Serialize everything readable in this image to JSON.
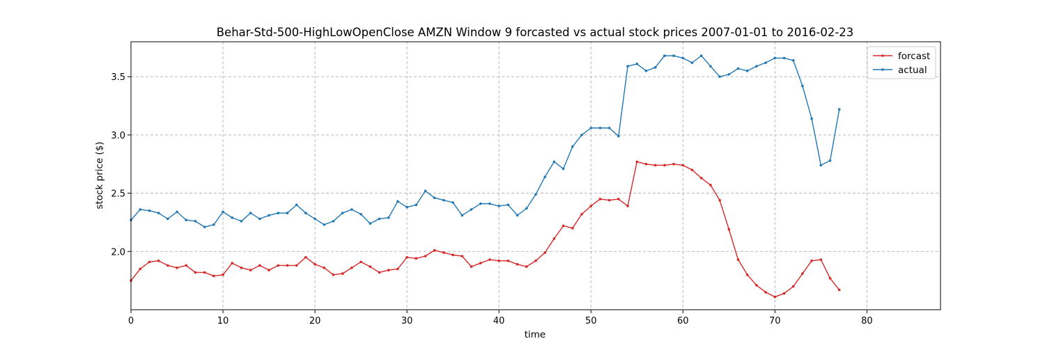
{
  "chart_data": {
    "type": "line",
    "title": "Behar-Std-500-HighLowOpenClose AMZN Window 9 forcasted vs actual stock prices 2007-01-01 to 2016-02-23",
    "xlabel": "time",
    "ylabel": "stock price ($)",
    "xlim": [
      0,
      88
    ],
    "ylim": [
      1.5,
      3.8
    ],
    "xticks": [
      0,
      10,
      20,
      30,
      40,
      50,
      60,
      70,
      80
    ],
    "yticks": [
      2.0,
      2.5,
      3.0,
      3.5
    ],
    "ytick_labels": [
      "2.0",
      "2.5",
      "3.0",
      "3.5"
    ],
    "grid": true,
    "legend_position": "top-right",
    "series": [
      {
        "name": "forcast",
        "color": "#d62728",
        "values": [
          1.75,
          1.85,
          1.91,
          1.92,
          1.88,
          1.86,
          1.88,
          1.82,
          1.82,
          1.79,
          1.8,
          1.9,
          1.86,
          1.84,
          1.88,
          1.84,
          1.88,
          1.88,
          1.88,
          1.95,
          1.89,
          1.86,
          1.8,
          1.81,
          1.86,
          1.91,
          1.87,
          1.82,
          1.84,
          1.85,
          1.95,
          1.94,
          1.96,
          2.01,
          1.99,
          1.97,
          1.96,
          1.87,
          1.9,
          1.93,
          1.92,
          1.92,
          1.89,
          1.87,
          1.92,
          1.99,
          2.11,
          2.22,
          2.2,
          2.32,
          2.39,
          2.45,
          2.44,
          2.45,
          2.39,
          2.77,
          2.75,
          2.74,
          2.74,
          2.75,
          2.74,
          2.7,
          2.63,
          2.57,
          2.44,
          2.19,
          1.93,
          1.8,
          1.71,
          1.65,
          1.61,
          1.64,
          1.7,
          1.81,
          1.92,
          1.93,
          1.77,
          1.67
        ]
      },
      {
        "name": "actual",
        "color": "#1f77b4",
        "values": [
          2.27,
          2.36,
          2.35,
          2.33,
          2.28,
          2.34,
          2.27,
          2.26,
          2.21,
          2.23,
          2.34,
          2.29,
          2.26,
          2.33,
          2.28,
          2.31,
          2.33,
          2.33,
          2.4,
          2.33,
          2.28,
          2.23,
          2.26,
          2.33,
          2.36,
          2.32,
          2.24,
          2.28,
          2.29,
          2.43,
          2.38,
          2.4,
          2.52,
          2.46,
          2.44,
          2.42,
          2.31,
          2.36,
          2.41,
          2.41,
          2.39,
          2.4,
          2.31,
          2.37,
          2.49,
          2.64,
          2.77,
          2.71,
          2.9,
          3.0,
          3.06,
          3.06,
          3.06,
          2.99,
          3.59,
          3.61,
          3.55,
          3.58,
          3.68,
          3.68,
          3.66,
          3.62,
          3.68,
          3.59,
          3.5,
          3.52,
          3.57,
          3.55,
          3.59,
          3.62,
          3.66,
          3.66,
          3.64,
          3.42,
          3.14,
          2.74,
          2.78,
          3.22
        ]
      }
    ]
  }
}
